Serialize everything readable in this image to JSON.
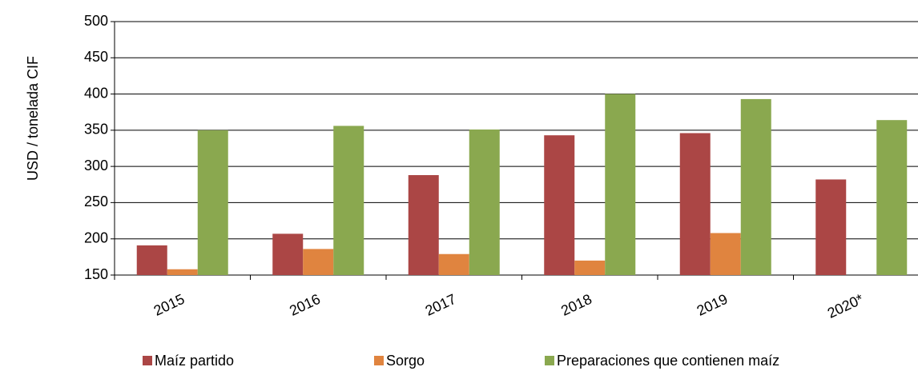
{
  "chart_data": {
    "type": "bar",
    "y_label": "USD / tonelada CIF",
    "categories": [
      "2015",
      "2016",
      "2017",
      "2018",
      "2019",
      "2020*"
    ],
    "series": [
      {
        "name": "Maíz partido",
        "color": "#ab4645",
        "values": [
          191,
          207,
          288,
          343,
          346,
          282
        ]
      },
      {
        "name": "Sorgo",
        "color": "#e0843f",
        "values": [
          158,
          186,
          179,
          170,
          208,
          null
        ]
      },
      {
        "name": "Preparaciones que contienen maíz",
        "color": "#8aa84f",
        "values": [
          350,
          356,
          351,
          400,
          393,
          364
        ]
      }
    ],
    "ylim": [
      150,
      500
    ],
    "yticks": [
      150,
      200,
      250,
      300,
      350,
      400,
      450,
      500
    ],
    "grid": true,
    "legend": "bottom"
  }
}
